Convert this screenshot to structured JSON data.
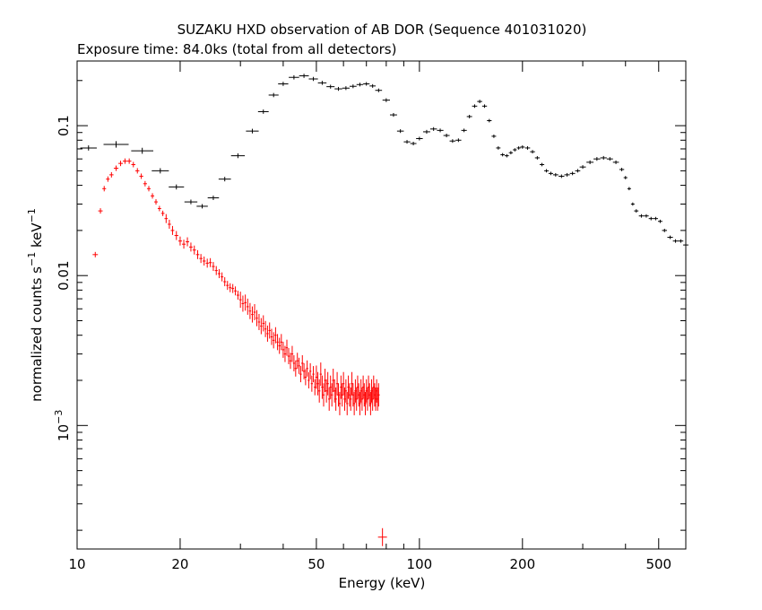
{
  "chart_data": {
    "type": "scatter",
    "title": "SUZAKU HXD observation of AB DOR (Sequence 401031020)",
    "subtitle": "Exposure time: 84.0ks (total from all detectors)",
    "xlabel": "Energy (keV)",
    "ylabel": "normalized counts s",
    "ylabel_sup1": "−1",
    "ylabel_mid": " keV",
    "ylabel_sup2": "−1",
    "x_scale": "log",
    "y_scale": "log",
    "xlim": [
      10,
      600
    ],
    "ylim": [
      0.00015,
      0.27
    ],
    "grid": false,
    "x_ticks": [
      {
        "value": 10,
        "label": "10"
      },
      {
        "value": 20,
        "label": "20"
      },
      {
        "value": 50,
        "label": "50"
      },
      {
        "value": 100,
        "label": "100"
      },
      {
        "value": 200,
        "label": "200"
      },
      {
        "value": 500,
        "label": "500"
      }
    ],
    "y_ticks": [
      {
        "value": 0.1,
        "label": "0.1"
      },
      {
        "value": 0.01,
        "label": "0.01"
      },
      {
        "value": 0.001,
        "label": "10",
        "sup": "−3"
      }
    ],
    "series": [
      {
        "color": "#000000",
        "points": [
          [
            10.8,
            0.071
          ],
          [
            13.0,
            0.075
          ],
          [
            15.5,
            0.068
          ],
          [
            17.5,
            0.05
          ],
          [
            19.5,
            0.039
          ],
          [
            21.5,
            0.031
          ],
          [
            23.2,
            0.029
          ],
          [
            25.0,
            0.033
          ],
          [
            27.0,
            0.044
          ],
          [
            29.5,
            0.063
          ],
          [
            32.5,
            0.092
          ],
          [
            35.0,
            0.124
          ],
          [
            37.5,
            0.16
          ],
          [
            40.0,
            0.19
          ],
          [
            43.0,
            0.21
          ],
          [
            46.0,
            0.215
          ],
          [
            49.0,
            0.205
          ],
          [
            52.0,
            0.193
          ],
          [
            55.0,
            0.182
          ],
          [
            58.0,
            0.176
          ],
          [
            61.0,
            0.178
          ],
          [
            64.0,
            0.183
          ],
          [
            67.0,
            0.188
          ],
          [
            70.0,
            0.19
          ],
          [
            73.0,
            0.184
          ],
          [
            76.0,
            0.172
          ],
          [
            80.0,
            0.148
          ],
          [
            84.0,
            0.118
          ],
          [
            88.0,
            0.092
          ],
          [
            92.0,
            0.078
          ],
          [
            96.0,
            0.076
          ],
          [
            100.0,
            0.082
          ],
          [
            105.0,
            0.091
          ],
          [
            110.0,
            0.095
          ],
          [
            115.0,
            0.093
          ],
          [
            120.0,
            0.086
          ],
          [
            125.0,
            0.079
          ],
          [
            130.0,
            0.08
          ],
          [
            135.0,
            0.093
          ],
          [
            140.0,
            0.115
          ],
          [
            145.0,
            0.135
          ],
          [
            150.0,
            0.145
          ],
          [
            155.0,
            0.135
          ],
          [
            160.0,
            0.108
          ],
          [
            165.0,
            0.085
          ],
          [
            170.0,
            0.071
          ],
          [
            175.0,
            0.064
          ],
          [
            180.0,
            0.063
          ],
          [
            185.0,
            0.066
          ],
          [
            190.0,
            0.069
          ],
          [
            195.0,
            0.071
          ],
          [
            200.0,
            0.072
          ],
          [
            207.0,
            0.071
          ],
          [
            214.0,
            0.067
          ],
          [
            221.0,
            0.061
          ],
          [
            228.0,
            0.055
          ],
          [
            235.0,
            0.05
          ],
          [
            242.0,
            0.048
          ],
          [
            250.0,
            0.047
          ],
          [
            260.0,
            0.046
          ],
          [
            270.0,
            0.047
          ],
          [
            280.0,
            0.048
          ],
          [
            290.0,
            0.05
          ],
          [
            300.0,
            0.053
          ],
          [
            315.0,
            0.057
          ],
          [
            330.0,
            0.06
          ],
          [
            345.0,
            0.061
          ],
          [
            360.0,
            0.06
          ],
          [
            375.0,
            0.057
          ],
          [
            390.0,
            0.051
          ],
          [
            400.0,
            0.045
          ],
          [
            410.0,
            0.038
          ],
          [
            420.0,
            0.03
          ],
          [
            430.0,
            0.027
          ],
          [
            445.0,
            0.025
          ],
          [
            460.0,
            0.025
          ],
          [
            475.0,
            0.024
          ],
          [
            490.0,
            0.024
          ],
          [
            505.0,
            0.023
          ],
          [
            520.0,
            0.02
          ],
          [
            540.0,
            0.018
          ],
          [
            560.0,
            0.017
          ],
          [
            580.0,
            0.017
          ],
          [
            600.0,
            0.016
          ]
        ]
      },
      {
        "color": "#ff0000",
        "points": [
          [
            11.3,
            0.0138
          ],
          [
            11.7,
            0.027
          ],
          [
            12.0,
            0.038
          ],
          [
            12.3,
            0.044
          ],
          [
            12.6,
            0.047
          ],
          [
            13.0,
            0.052
          ],
          [
            13.4,
            0.056
          ],
          [
            13.8,
            0.058
          ],
          [
            14.2,
            0.058
          ],
          [
            14.6,
            0.055
          ],
          [
            15.0,
            0.05
          ],
          [
            15.4,
            0.046
          ],
          [
            15.8,
            0.041
          ],
          [
            16.2,
            0.038
          ],
          [
            16.6,
            0.034
          ],
          [
            17.0,
            0.031
          ],
          [
            17.4,
            0.028
          ],
          [
            17.8,
            0.026
          ],
          [
            18.2,
            0.024
          ],
          [
            18.6,
            0.022
          ],
          [
            19.0,
            0.02
          ],
          [
            19.5,
            0.0185
          ],
          [
            20.0,
            0.017
          ],
          [
            20.5,
            0.0162
          ],
          [
            21.0,
            0.0168
          ],
          [
            21.5,
            0.0155
          ],
          [
            22.0,
            0.0148
          ],
          [
            22.5,
            0.0138
          ],
          [
            23.0,
            0.013
          ],
          [
            23.5,
            0.0125
          ],
          [
            24.0,
            0.0121
          ],
          [
            24.5,
            0.0122
          ],
          [
            25.0,
            0.0115
          ],
          [
            25.5,
            0.0108
          ],
          [
            26.0,
            0.0103
          ],
          [
            26.5,
            0.0098
          ],
          [
            27.0,
            0.0091
          ],
          [
            27.5,
            0.0086
          ],
          [
            28.0,
            0.0083
          ],
          [
            28.5,
            0.0082
          ],
          [
            29.0,
            0.0079
          ],
          [
            29.5,
            0.0074
          ],
          [
            30.0,
            0.0069
          ],
          [
            30.5,
            0.0065
          ],
          [
            31.0,
            0.0066
          ],
          [
            31.5,
            0.0062
          ],
          [
            32.0,
            0.0058
          ],
          [
            32.5,
            0.0055
          ],
          [
            33.0,
            0.0057
          ],
          [
            33.5,
            0.0052
          ],
          [
            34.0,
            0.0049
          ],
          [
            34.5,
            0.0046
          ],
          [
            35.0,
            0.0048
          ],
          [
            35.5,
            0.0044
          ],
          [
            36.0,
            0.0041
          ],
          [
            36.5,
            0.0043
          ],
          [
            37.0,
            0.0039
          ],
          [
            37.5,
            0.0037
          ],
          [
            38.0,
            0.004
          ],
          [
            38.5,
            0.0036
          ],
          [
            39.0,
            0.0034
          ],
          [
            39.5,
            0.0036
          ],
          [
            40.0,
            0.0032
          ],
          [
            40.5,
            0.003
          ],
          [
            41.0,
            0.0033
          ],
          [
            41.5,
            0.0029
          ],
          [
            42.0,
            0.0027
          ],
          [
            42.5,
            0.003
          ],
          [
            43.0,
            0.0026
          ],
          [
            43.5,
            0.0024
          ],
          [
            44.0,
            0.0027
          ],
          [
            44.5,
            0.0025
          ],
          [
            45.0,
            0.0022
          ],
          [
            45.5,
            0.0026
          ],
          [
            46.0,
            0.0023
          ],
          [
            46.5,
            0.0021
          ],
          [
            47.0,
            0.0024
          ],
          [
            47.5,
            0.002
          ],
          [
            48.0,
            0.0023
          ],
          [
            48.5,
            0.0019
          ],
          [
            49.0,
            0.0022
          ],
          [
            49.5,
            0.0018
          ],
          [
            50.0,
            0.0021
          ],
          [
            50.5,
            0.0019
          ],
          [
            51.0,
            0.0017
          ],
          [
            51.5,
            0.0022
          ],
          [
            52.0,
            0.0018
          ],
          [
            52.5,
            0.0016
          ],
          [
            53.0,
            0.002
          ],
          [
            53.5,
            0.0017
          ],
          [
            54.0,
            0.0019
          ],
          [
            54.5,
            0.0015
          ],
          [
            55.0,
            0.0018
          ],
          [
            55.5,
            0.0016
          ],
          [
            56.0,
            0.002
          ],
          [
            56.5,
            0.0017
          ],
          [
            57.0,
            0.0015
          ],
          [
            57.5,
            0.0019
          ],
          [
            58.0,
            0.0016
          ],
          [
            58.5,
            0.0014
          ],
          [
            59.0,
            0.0018
          ],
          [
            59.5,
            0.0016
          ],
          [
            60.0,
            0.0019
          ],
          [
            60.5,
            0.0015
          ],
          [
            61.0,
            0.0017
          ],
          [
            61.5,
            0.0014
          ],
          [
            62.0,
            0.0018
          ],
          [
            62.5,
            0.0016
          ],
          [
            63.0,
            0.0015
          ],
          [
            63.5,
            0.0019
          ],
          [
            64.0,
            0.0016
          ],
          [
            64.5,
            0.0014
          ],
          [
            65.0,
            0.0017
          ],
          [
            65.5,
            0.0015
          ],
          [
            66.0,
            0.0018
          ],
          [
            66.5,
            0.0016
          ],
          [
            67.0,
            0.0014
          ],
          [
            67.5,
            0.0017
          ],
          [
            68.0,
            0.0015
          ],
          [
            68.5,
            0.0018
          ],
          [
            69.0,
            0.0016
          ],
          [
            69.5,
            0.0014
          ],
          [
            70.0,
            0.0017
          ],
          [
            70.5,
            0.0015
          ],
          [
            71.0,
            0.0018
          ],
          [
            71.5,
            0.0016
          ],
          [
            72.0,
            0.0014
          ],
          [
            72.5,
            0.0017
          ],
          [
            73.0,
            0.0015
          ],
          [
            73.5,
            0.0018
          ],
          [
            74.0,
            0.0016
          ],
          [
            74.5,
            0.0015
          ],
          [
            75.0,
            0.0017
          ],
          [
            75.5,
            0.0015
          ],
          [
            76.0,
            0.0016
          ],
          [
            78.0,
            0.00018
          ]
        ]
      }
    ]
  }
}
